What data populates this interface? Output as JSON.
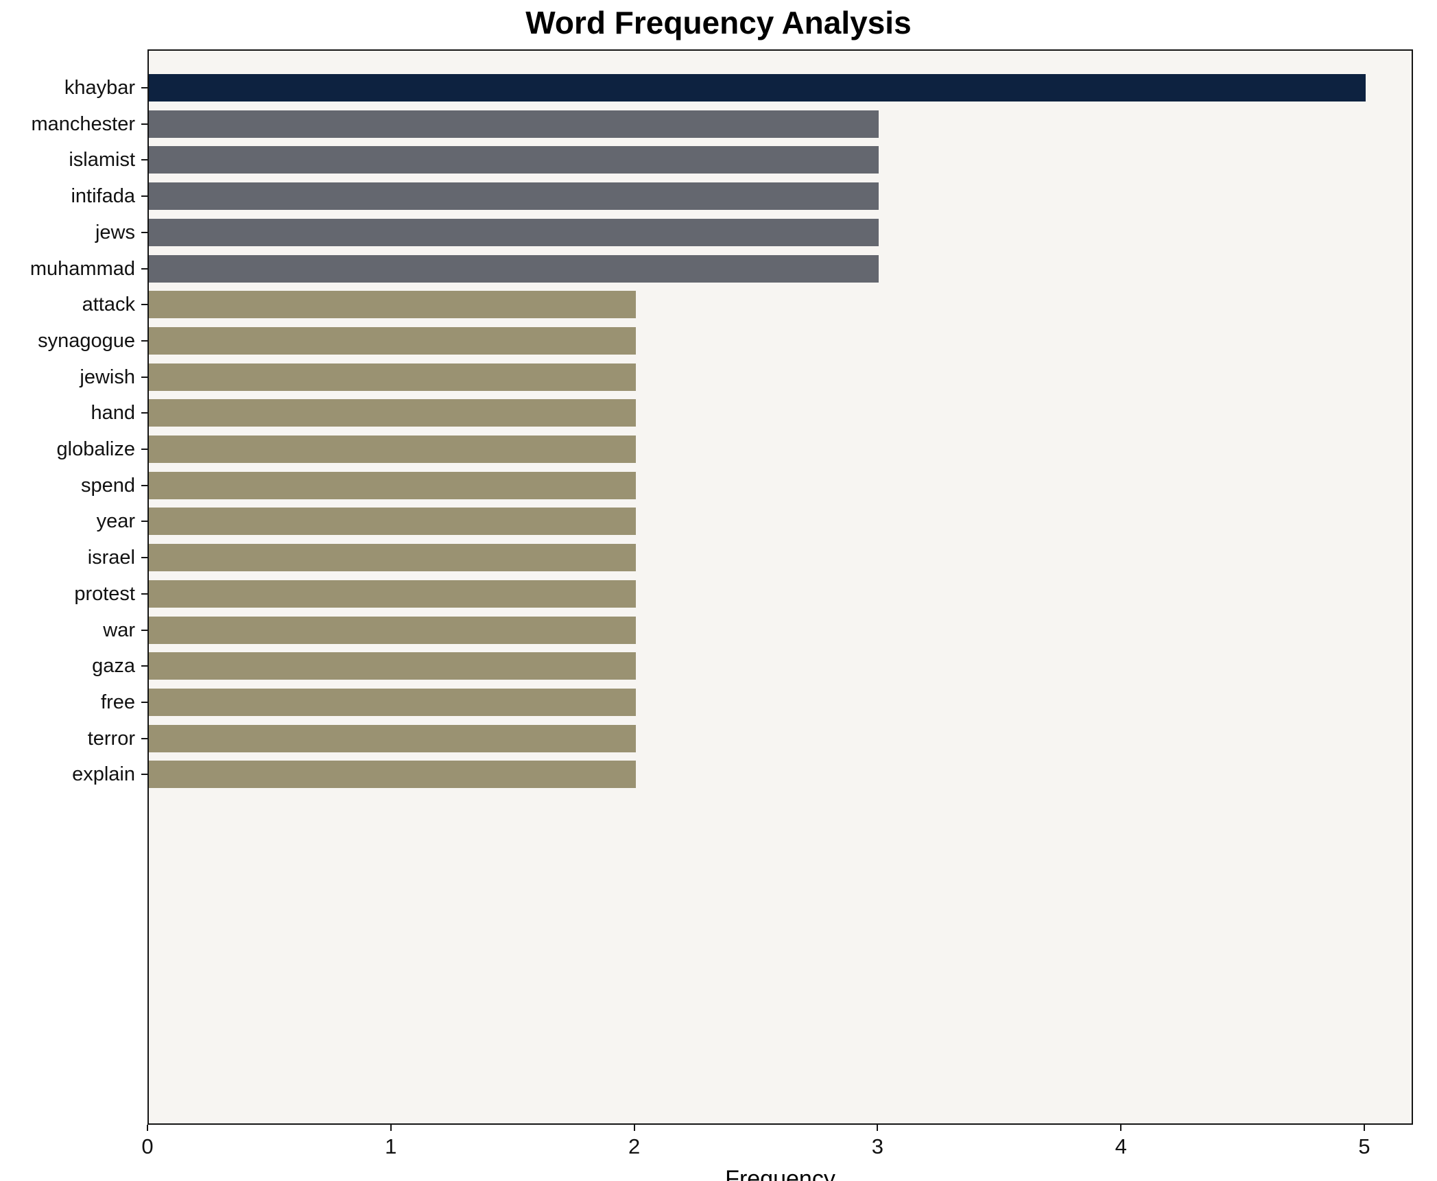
{
  "chart": {
    "title": "Word Frequency Analysis",
    "xlabel": "Frequency"
  },
  "chart_data": {
    "type": "bar",
    "orientation": "horizontal",
    "title": "Word Frequency Analysis",
    "xlabel": "Frequency",
    "ylabel": "",
    "categories": [
      "khaybar",
      "manchester",
      "islamist",
      "intifada",
      "jews",
      "muhammad",
      "attack",
      "synagogue",
      "jewish",
      "hand",
      "globalize",
      "spend",
      "year",
      "israel",
      "protest",
      "war",
      "gaza",
      "free",
      "terror",
      "explain"
    ],
    "values": [
      5,
      3,
      3,
      3,
      3,
      3,
      2,
      2,
      2,
      2,
      2,
      2,
      2,
      2,
      2,
      2,
      2,
      2,
      2,
      2
    ],
    "bar_colors": [
      "#0d2240",
      "#64676f",
      "#64676f",
      "#64676f",
      "#64676f",
      "#64676f",
      "#9a9272",
      "#9a9272",
      "#9a9272",
      "#9a9272",
      "#9a9272",
      "#9a9272",
      "#9a9272",
      "#9a9272",
      "#9a9272",
      "#9a9272",
      "#9a9272",
      "#9a9272",
      "#9a9272",
      "#9a9272"
    ],
    "xlim": [
      0,
      5.2
    ],
    "xticks": [
      0,
      1,
      2,
      3,
      4,
      5
    ],
    "grid": false,
    "legend": false,
    "plot_background": "#f7f5f2"
  }
}
